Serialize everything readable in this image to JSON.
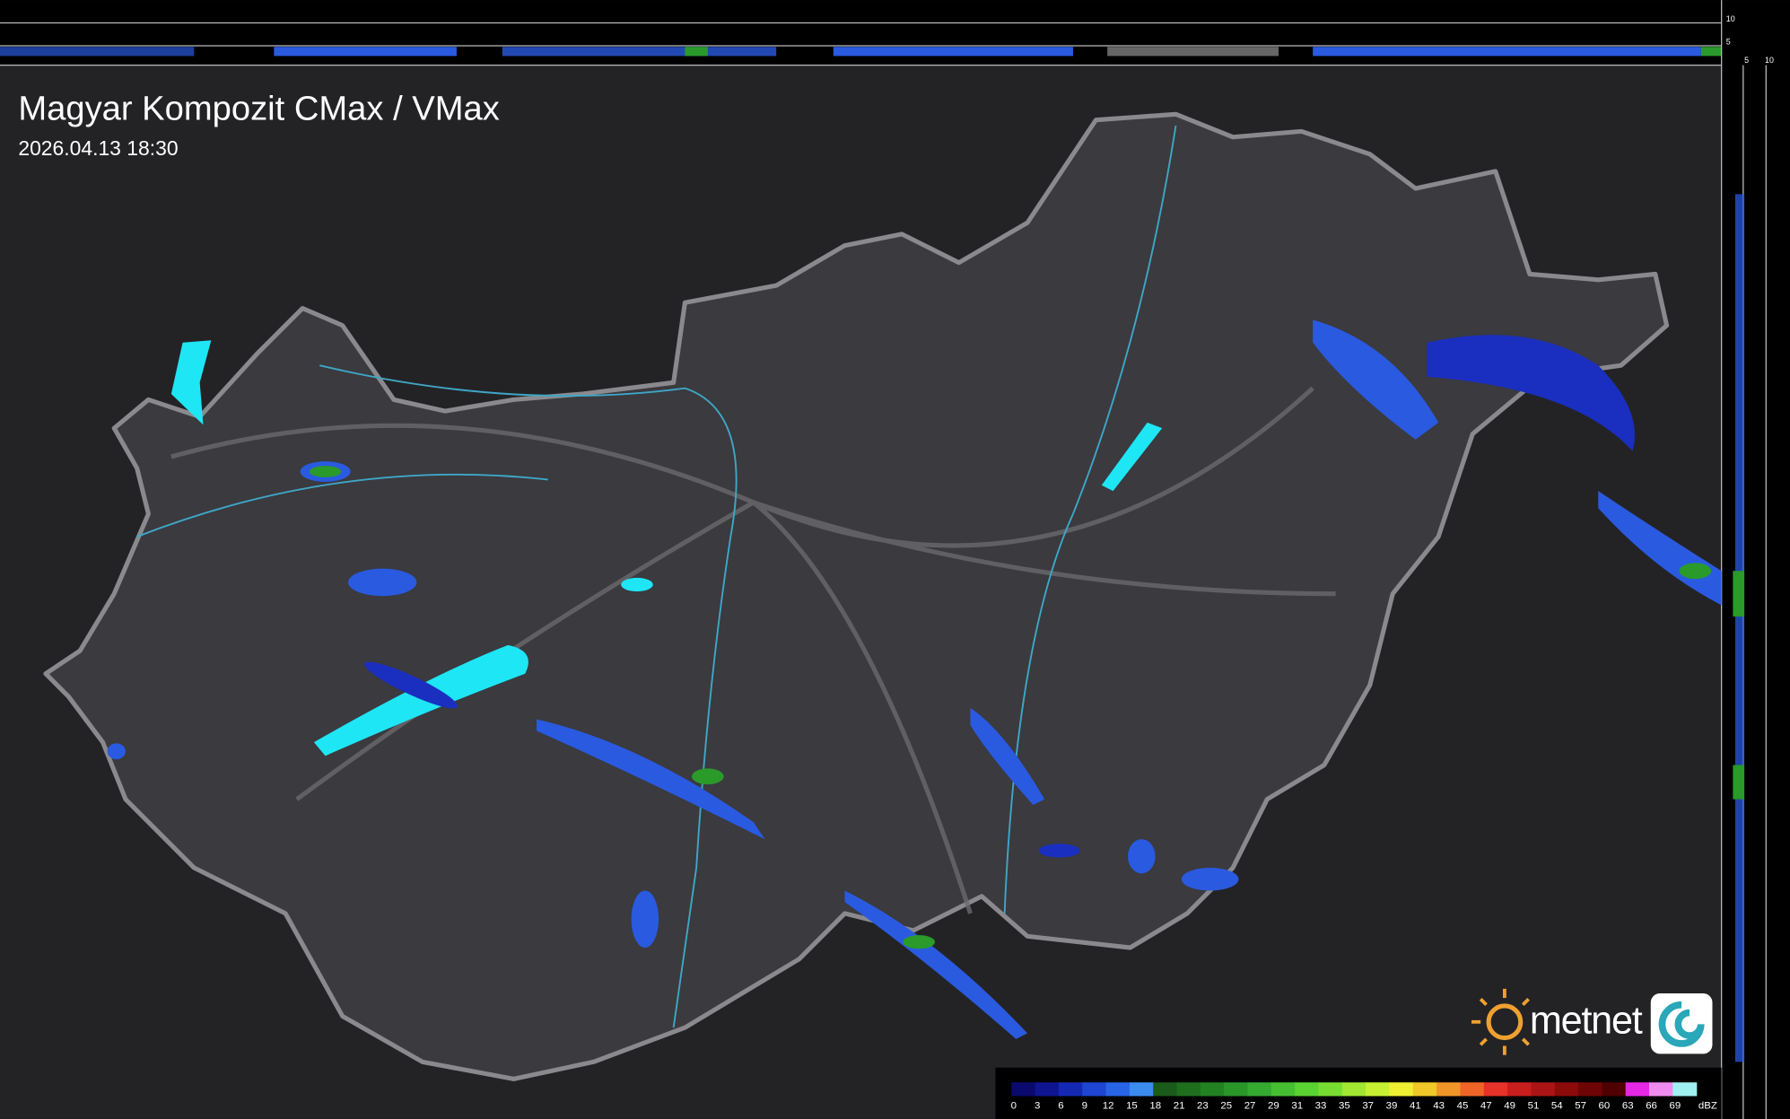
{
  "header": {
    "title": "Magyar Kompozit CMax / VMax",
    "timestamp": "2026.04.13 18:30"
  },
  "side_axis": {
    "top_labels": [
      "10",
      "5"
    ],
    "right_labels": [
      "5",
      "10"
    ]
  },
  "logo": {
    "text": "metnet"
  },
  "legend": {
    "unit": "dBZ",
    "ticks": [
      "0",
      "3",
      "6",
      "9",
      "12",
      "15",
      "18",
      "21",
      "23",
      "25",
      "27",
      "29",
      "31",
      "33",
      "35",
      "37",
      "39",
      "41",
      "43",
      "45",
      "47",
      "49",
      "51",
      "54",
      "57",
      "60",
      "63",
      "66",
      "69"
    ],
    "colors": [
      "#0a0a6e",
      "#0f1490",
      "#1428b4",
      "#1e46d2",
      "#2864e6",
      "#3c8cf0",
      "#1a5a1a",
      "#1e6e1e",
      "#228222",
      "#2a962a",
      "#34aa30",
      "#46be32",
      "#5ad232",
      "#78dc32",
      "#a0e632",
      "#c8f032",
      "#f0f032",
      "#f0c828",
      "#f09628",
      "#f06428",
      "#e63228",
      "#c81e1e",
      "#aa1414",
      "#8c0a0a",
      "#6e0505",
      "#500000",
      "#e628e6",
      "#f08cf0",
      "#a0f0f0"
    ]
  }
}
